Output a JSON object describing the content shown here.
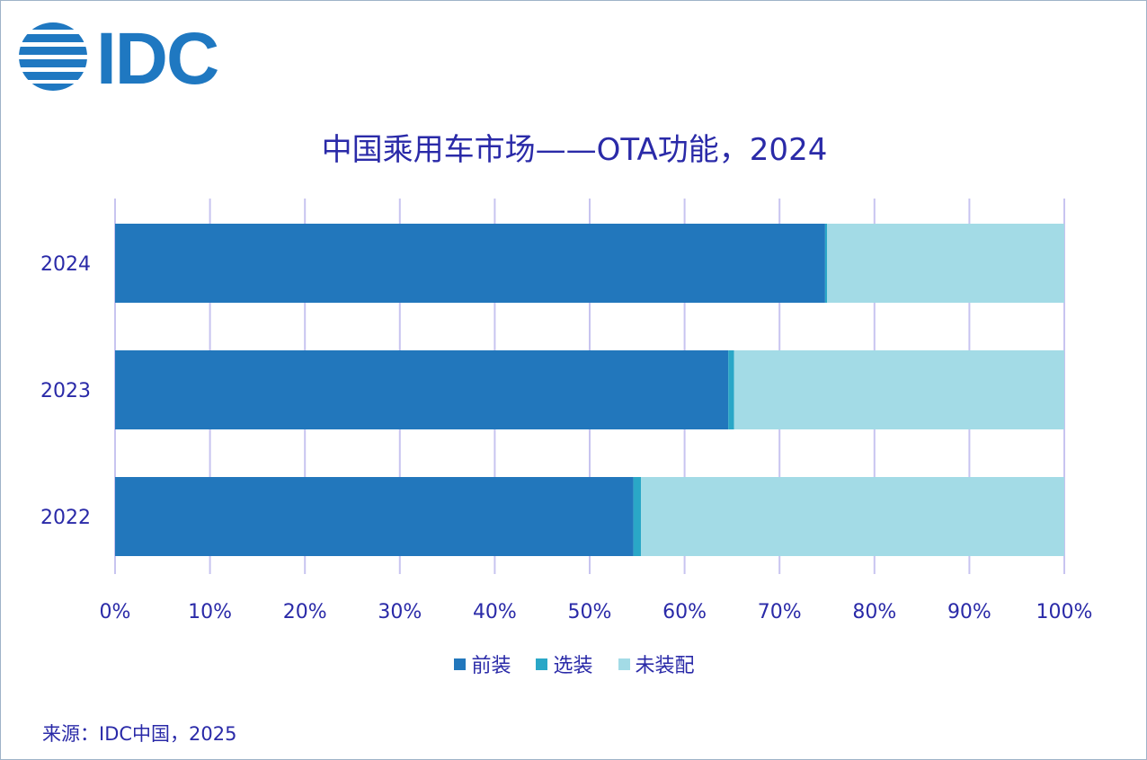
{
  "logo": {
    "text": "IDC",
    "color": "#1f78c1"
  },
  "title": "中国乘用车市场——OTA功能，2024",
  "source": "来源：IDC中国，2025",
  "colors": {
    "text": "#2a2aa8",
    "grid": "#c8c4f0",
    "axis": "#c8c4f0"
  },
  "chart_data": {
    "type": "bar",
    "orientation": "horizontal",
    "stacked": "percent",
    "title": "中国乘用车市场——OTA功能，2024",
    "xlabel": "",
    "ylabel": "",
    "categories": [
      "2024",
      "2023",
      "2022"
    ],
    "series": [
      {
        "name": "前装",
        "color": "#2277bc",
        "values": [
          74.8,
          64.6,
          54.6
        ]
      },
      {
        "name": "选装",
        "color": "#2aa7c7",
        "values": [
          0.2,
          0.6,
          0.8
        ]
      },
      {
        "name": "未装配",
        "color": "#a3dbe6",
        "values": [
          25.0,
          34.8,
          44.6
        ]
      }
    ],
    "xlim": [
      0,
      100
    ],
    "xticks": [
      "0%",
      "10%",
      "20%",
      "30%",
      "40%",
      "50%",
      "60%",
      "70%",
      "80%",
      "90%",
      "100%"
    ],
    "grid": true,
    "legend": "bottom"
  }
}
